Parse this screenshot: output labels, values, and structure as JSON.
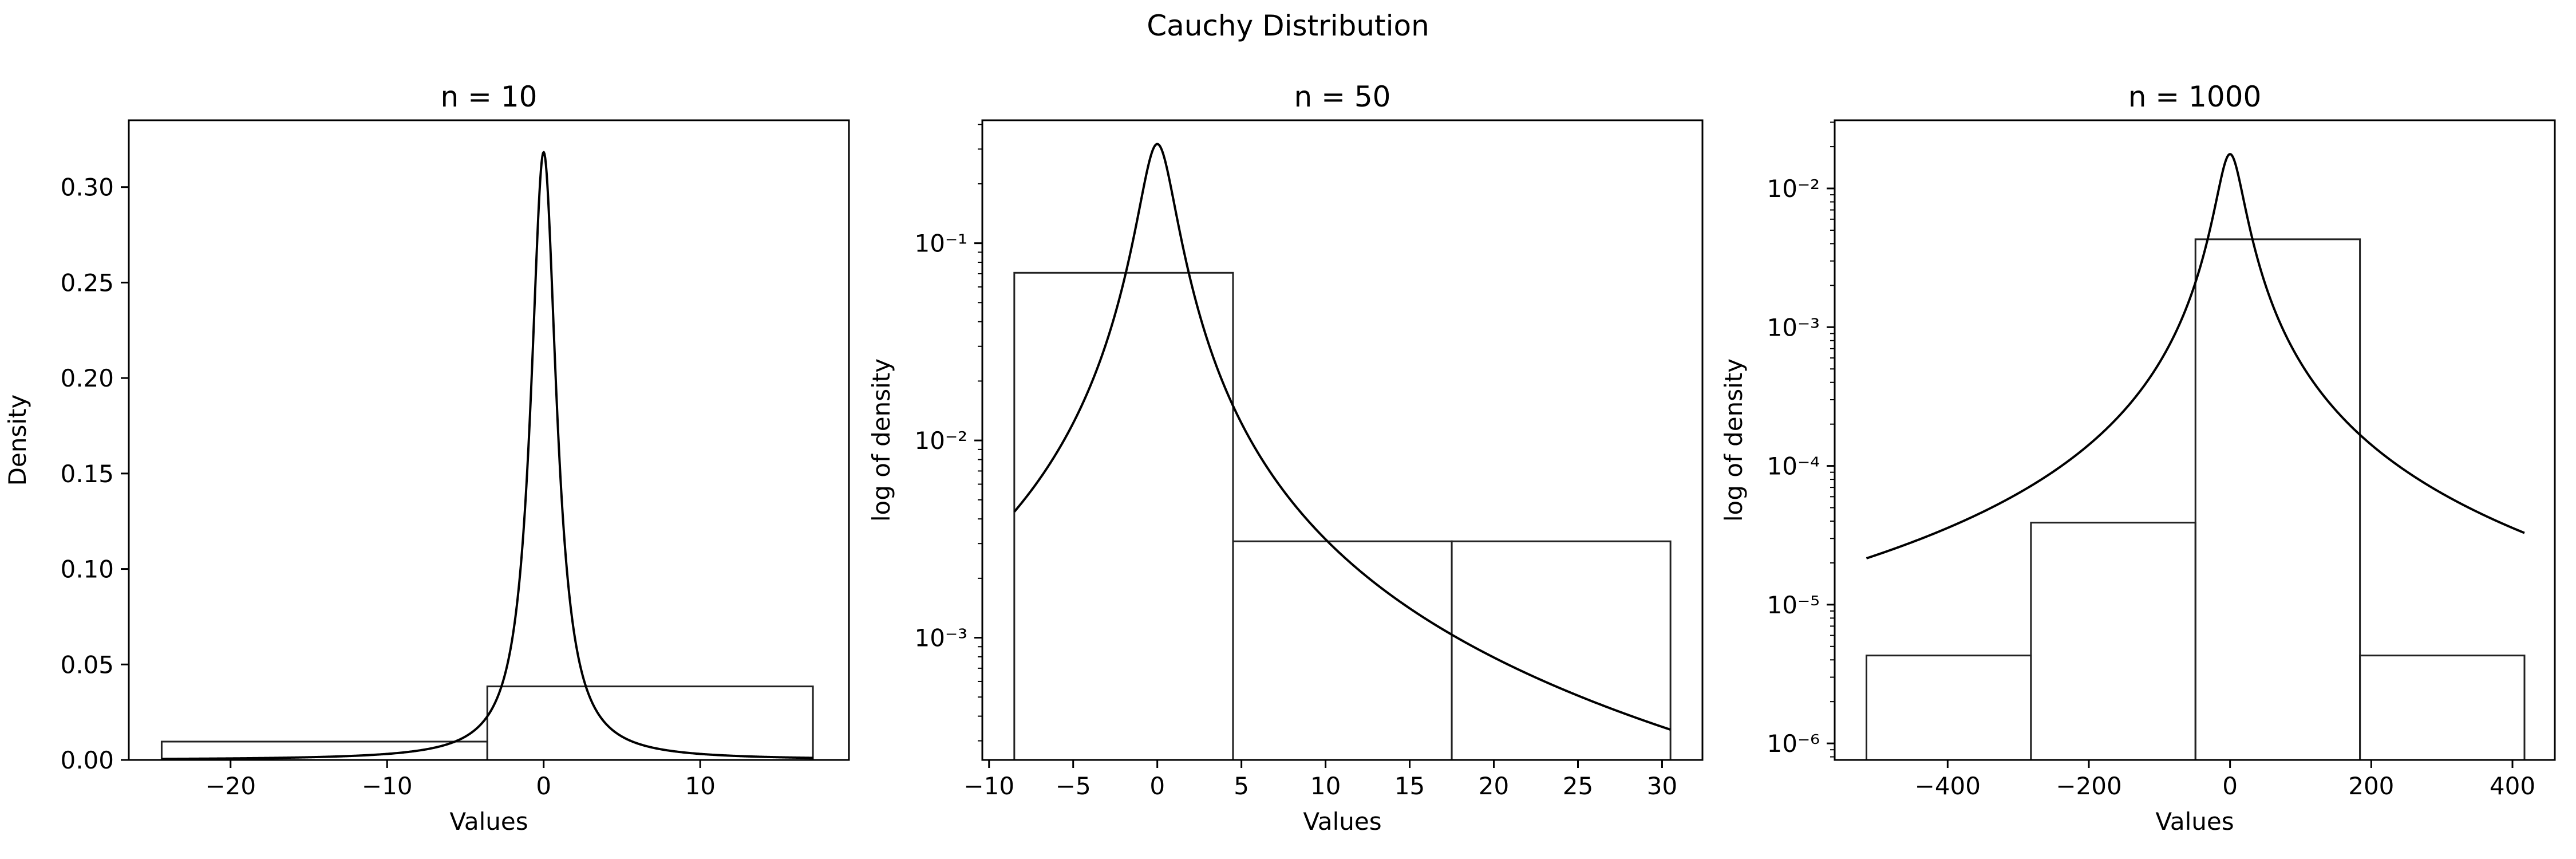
{
  "figure": {
    "suptitle": "Cauchy Distribution"
  },
  "chart_data": [
    {
      "type": "histogram",
      "title": "n = 10",
      "xlabel": "Values",
      "ylabel": "Density",
      "yscale": "linear",
      "xlim": [
        -26.5,
        19.5
      ],
      "ylim": [
        0,
        0.335
      ],
      "xticks": [
        -20,
        -10,
        0,
        10
      ],
      "xtick_labels": [
        "−20",
        "−10",
        "0",
        "10"
      ],
      "yticks": [
        0.0,
        0.05,
        0.1,
        0.15,
        0.2,
        0.25,
        0.3
      ],
      "ytick_labels": [
        "0.00",
        "0.05",
        "0.10",
        "0.15",
        "0.20",
        "0.25",
        "0.30"
      ],
      "bins": [
        {
          "x0": -24.4,
          "x1": -3.6,
          "density": 0.0096
        },
        {
          "x0": -3.6,
          "x1": 17.2,
          "density": 0.0385
        }
      ],
      "pdf_curve": {
        "function": "cauchy",
        "location": 0,
        "scale": 1,
        "x_range": [
          -24.4,
          17.2
        ]
      },
      "grid": false,
      "legend": "none"
    },
    {
      "type": "histogram",
      "title": "n = 50",
      "xlabel": "Values",
      "ylabel": "log of density",
      "yscale": "log",
      "xlim": [
        -10.4,
        32.4
      ],
      "ylim": [
        0.00024,
        0.42
      ],
      "xticks": [
        -10,
        -5,
        0,
        5,
        10,
        15,
        20,
        25,
        30
      ],
      "xtick_labels": [
        "−10",
        "−5",
        "0",
        "5",
        "10",
        "15",
        "20",
        "25",
        "30"
      ],
      "yticks_exp": [
        -3,
        -2,
        -1
      ],
      "bins": [
        {
          "x0": -8.5,
          "x1": 4.5,
          "density": 0.0708
        },
        {
          "x0": 4.5,
          "x1": 17.5,
          "density": 0.00308
        },
        {
          "x0": 17.5,
          "x1": 30.5,
          "density": 0.00308
        }
      ],
      "pdf_curve": {
        "function": "cauchy",
        "location": 0,
        "scale": 1,
        "x_range": [
          -8.5,
          30.5
        ]
      },
      "grid": false,
      "legend": "none"
    },
    {
      "type": "histogram",
      "title": "n = 1000",
      "xlabel": "Values",
      "ylabel": "log of density",
      "yscale": "log",
      "xlim": [
        -560,
        460
      ],
      "ylim": [
        7.6e-07,
        0.031
      ],
      "xticks": [
        -400,
        -200,
        0,
        200,
        400
      ],
      "xtick_labels": [
        "−400",
        "−200",
        "0",
        "200",
        "400"
      ],
      "yticks_exp": [
        -6,
        -5,
        -4,
        -3,
        -2
      ],
      "bins": [
        {
          "x0": -515,
          "x1": -282,
          "density": 4.3e-06
        },
        {
          "x0": -282,
          "x1": -49,
          "density": 3.9e-05
        },
        {
          "x0": -49,
          "x1": 184,
          "density": 0.0043
        },
        {
          "x0": 184,
          "x1": 417,
          "density": 4.3e-06
        }
      ],
      "pdf_curve": {
        "function": "cauchy",
        "location": 0,
        "scale": 18,
        "x_range": [
          -515,
          417
        ]
      },
      "grid": false,
      "legend": "none"
    }
  ]
}
